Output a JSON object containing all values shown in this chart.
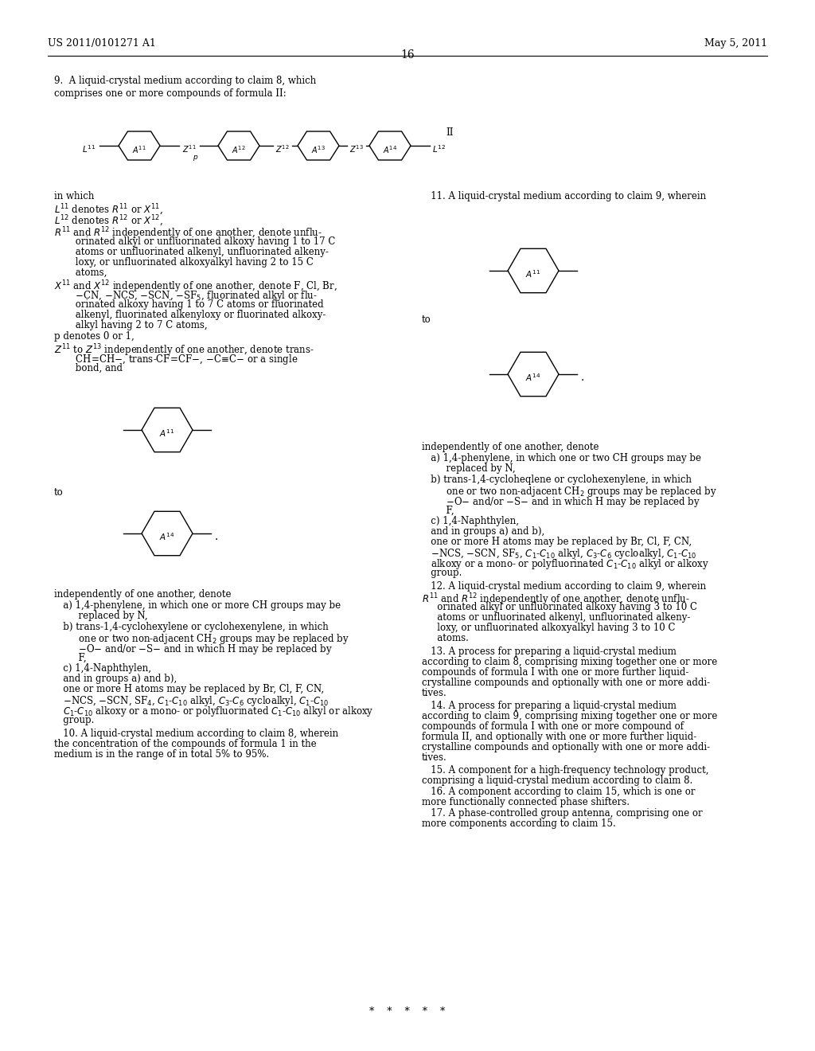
{
  "background_color": "#ffffff",
  "header_left": "US 2011/0101271 A1",
  "header_right": "May 5, 2011",
  "page_number": "16",
  "fig_width": 10.24,
  "fig_height": 13.2,
  "dpi": 100
}
